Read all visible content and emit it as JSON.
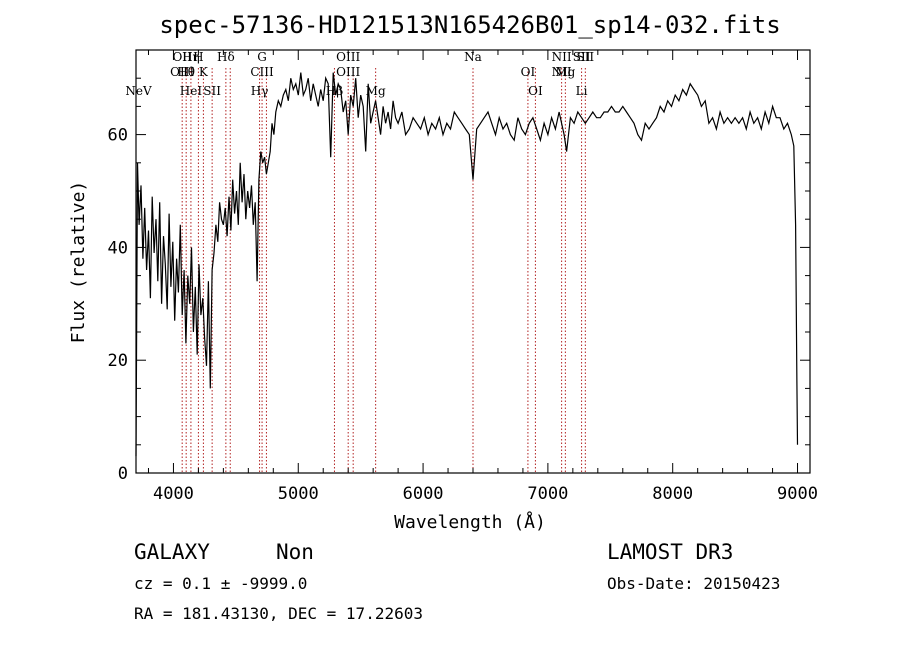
{
  "chart_data": {
    "type": "line",
    "title": "spec-57136-HD121513N165426B01_sp14-032.fits",
    "xlabel": "Wavelength (Å)",
    "ylabel": "Flux (relative)",
    "xlim": [
      3700,
      9100
    ],
    "ylim": [
      0,
      75
    ],
    "xticks": [
      4000,
      5000,
      6000,
      7000,
      8000,
      9000
    ],
    "yticks": [
      0,
      20,
      40,
      60
    ],
    "grid": false,
    "line_color": "#000000",
    "marker_color": "#b22222",
    "series": [
      {
        "x": [
          3700,
          3712,
          3725,
          3740,
          3755,
          3770,
          3785,
          3800,
          3815,
          3830,
          3845,
          3860,
          3875,
          3890,
          3905,
          3920,
          3935,
          3950,
          3965,
          3980,
          3995,
          4010,
          4025,
          4040,
          4055,
          4070,
          4085,
          4100,
          4115,
          4130,
          4145,
          4160,
          4175,
          4190,
          4205,
          4220,
          4235,
          4250,
          4265,
          4280,
          4295,
          4310,
          4325,
          4340,
          4355,
          4370,
          4385,
          4400,
          4415,
          4430,
          4445,
          4460,
          4475,
          4490,
          4505,
          4520,
          4535,
          4550,
          4565,
          4580,
          4595,
          4610,
          4625,
          4640,
          4655,
          4670,
          4685,
          4700,
          4715,
          4730,
          4745,
          4760,
          4775,
          4790,
          4805,
          4820,
          4840,
          4860,
          4880,
          4900,
          4920,
          4940,
          4960,
          4980,
          5000,
          5020,
          5040,
          5060,
          5080,
          5100,
          5120,
          5140,
          5160,
          5180,
          5200,
          5220,
          5240,
          5260,
          5280,
          5300,
          5320,
          5340,
          5360,
          5380,
          5400,
          5420,
          5440,
          5460,
          5480,
          5500,
          5520,
          5540,
          5560,
          5580,
          5600,
          5620,
          5640,
          5660,
          5680,
          5700,
          5720,
          5740,
          5760,
          5780,
          5800,
          5830,
          5860,
          5890,
          5920,
          5950,
          5980,
          6010,
          6040,
          6070,
          6100,
          6130,
          6160,
          6190,
          6220,
          6250,
          6280,
          6310,
          6340,
          6370,
          6400,
          6430,
          6460,
          6490,
          6520,
          6550,
          6580,
          6610,
          6640,
          6670,
          6700,
          6730,
          6760,
          6790,
          6820,
          6850,
          6880,
          6910,
          6940,
          6970,
          7000,
          7030,
          7060,
          7090,
          7110,
          7130,
          7150,
          7180,
          7210,
          7240,
          7270,
          7300,
          7330,
          7360,
          7390,
          7420,
          7450,
          7480,
          7510,
          7540,
          7570,
          7600,
          7630,
          7660,
          7690,
          7720,
          7750,
          7780,
          7810,
          7840,
          7870,
          7900,
          7930,
          7960,
          7990,
          8020,
          8050,
          8080,
          8110,
          8140,
          8170,
          8200,
          8230,
          8260,
          8290,
          8320,
          8350,
          8380,
          8410,
          8440,
          8470,
          8500,
          8530,
          8560,
          8590,
          8620,
          8650,
          8680,
          8710,
          8740,
          8770,
          8800,
          8830,
          8860,
          8890,
          8920,
          8950,
          8970,
          8985,
          8995,
          9000
        ],
        "y": [
          3,
          55,
          44,
          51,
          38,
          47,
          36,
          43,
          31,
          49,
          39,
          45,
          34,
          48,
          30,
          42,
          37,
          29,
          46,
          33,
          41,
          27,
          38,
          32,
          44,
          28,
          36,
          23,
          35,
          30,
          40,
          25,
          33,
          21,
          37,
          28,
          31,
          24,
          19,
          34,
          15,
          36,
          39,
          44,
          41,
          48,
          45,
          44,
          47,
          42,
          49,
          43,
          52,
          46,
          50,
          44,
          55,
          48,
          53,
          45,
          50,
          47,
          51,
          44,
          48,
          34,
          52,
          57,
          55,
          56,
          53,
          55,
          57,
          62,
          60,
          64,
          66,
          65,
          67,
          68,
          66,
          70,
          68,
          69,
          67,
          71,
          67,
          68,
          70,
          66,
          69,
          67,
          65,
          68,
          66,
          70,
          69,
          56,
          71,
          67,
          69,
          68,
          64,
          66,
          60,
          67,
          65,
          70,
          63,
          67,
          65,
          57,
          69,
          62,
          64,
          66,
          63,
          60,
          65,
          62,
          64,
          61,
          66,
          63,
          62,
          64,
          60,
          61,
          63,
          62,
          61,
          63,
          60,
          62,
          61,
          63,
          60,
          62,
          61,
          64,
          63,
          62,
          61,
          60,
          52,
          61,
          62,
          63,
          64,
          62,
          60,
          63,
          61,
          62,
          60,
          59,
          63,
          61,
          60,
          62,
          63,
          61,
          59,
          62,
          60,
          63,
          61,
          64,
          62,
          60,
          57,
          63,
          62,
          64,
          63,
          62,
          63,
          64,
          63,
          63,
          64,
          64,
          65,
          64,
          64,
          65,
          64,
          63,
          62,
          60,
          59,
          62,
          61,
          62,
          63,
          65,
          64,
          66,
          65,
          67,
          66,
          68,
          67,
          69,
          68,
          67,
          65,
          66,
          62,
          63,
          61,
          64,
          62,
          63,
          62,
          63,
          62,
          63,
          61,
          64,
          62,
          63,
          61,
          64,
          62,
          65,
          63,
          63,
          61,
          62,
          60,
          58,
          44,
          16,
          5
        ]
      }
    ],
    "markers": [
      {
        "wl": 4070,
        "labels": [
          "OII",
          "OIII"
        ]
      },
      {
        "wl": 4102,
        "labels": [
          "Hθ"
        ]
      },
      {
        "wl": 4140,
        "labels": [
          "HeI",
          "Hη"
        ]
      },
      {
        "wl": 4200,
        "labels": [
          "H"
        ]
      },
      {
        "wl": 4240,
        "labels": [
          "K"
        ]
      },
      {
        "wl": 4310,
        "labels": [
          "SII"
        ]
      },
      {
        "wl": 4420,
        "labels": [
          "Hδ"
        ]
      },
      {
        "wl": 4455,
        "labels": []
      },
      {
        "wl": 4690,
        "labels": [
          "Hγ"
        ]
      },
      {
        "wl": 4710,
        "labels": [
          "G",
          "CIII"
        ]
      },
      {
        "wl": 4745,
        "labels": []
      },
      {
        "wl": 5290,
        "labels": [
          "Hβ"
        ]
      },
      {
        "wl": 5400,
        "labels": [
          "OIII",
          "OIII"
        ]
      },
      {
        "wl": 5440,
        "labels": []
      },
      {
        "wl": 5620,
        "labels": [
          "Mg"
        ]
      },
      {
        "wl": 6400,
        "labels": [
          "Na"
        ]
      },
      {
        "wl": 6840,
        "labels": [
          "OI"
        ]
      },
      {
        "wl": 6900,
        "labels": [
          "OI"
        ]
      },
      {
        "wl": 7110,
        "labels": [
          "NII",
          "NII"
        ]
      },
      {
        "wl": 7140,
        "labels": [
          "Mg"
        ]
      },
      {
        "wl": 7270,
        "labels": [
          "Li",
          "SII"
        ]
      },
      {
        "wl": 7300,
        "labels": [
          "SII"
        ]
      }
    ],
    "extra_labels": [
      {
        "text": "NeV",
        "wl": 3720
      }
    ]
  },
  "info": {
    "class": "GALAXY",
    "subclass": "Non",
    "cz": "cz = 0.1 ± -9999.0",
    "coords": "RA = 181.43130, DEC =  17.22603",
    "survey": "LAMOST DR3",
    "obsdate": "Obs-Date: 20150423"
  }
}
